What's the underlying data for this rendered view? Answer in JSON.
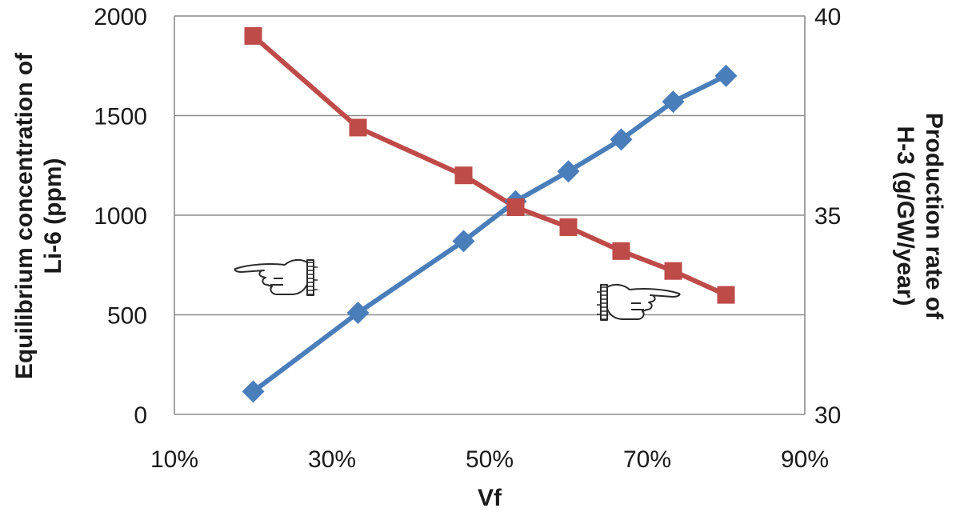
{
  "chart_data": {
    "type": "line",
    "title": "",
    "xlabel": "Vf",
    "ylabel_left": [
      "Equilibrium concentration of",
      "Li-6 (ppm)"
    ],
    "ylabel_right": [
      "Production rate of",
      "H-3 (g/GW/year)"
    ],
    "x_ticks": [
      "10%",
      "30%",
      "50%",
      "70%",
      "90%"
    ],
    "y_left_ticks": [
      "0",
      "500",
      "1000",
      "1500",
      "2000"
    ],
    "y_right_ticks": [
      "30",
      "35",
      "40"
    ],
    "xlim": [
      0.1,
      0.9
    ],
    "ylim_left": [
      0,
      2000
    ],
    "ylim_right": [
      30,
      40
    ],
    "grid": "horizontal",
    "legend": "none",
    "series": [
      {
        "axis": "left",
        "color": "#4a7ebb",
        "marker": "diamond",
        "x": [
          0.2,
          0.333,
          0.467,
          0.533,
          0.6,
          0.667,
          0.733,
          0.8
        ],
        "values": [
          115,
          510,
          870,
          1070,
          1220,
          1380,
          1570,
          1700
        ]
      },
      {
        "axis": "right",
        "color": "#be4b48",
        "marker": "square",
        "x": [
          0.2,
          0.333,
          0.467,
          0.533,
          0.6,
          0.667,
          0.733,
          0.8
        ],
        "values": [
          39.5,
          37.2,
          36.0,
          35.2,
          34.7,
          34.1,
          33.6,
          33.0
        ]
      }
    ],
    "annotations": [
      {
        "icon": "hand-pointing-left-icon",
        "points_to": "left-axis"
      },
      {
        "icon": "hand-pointing-right-icon",
        "points_to": "right-axis"
      }
    ]
  }
}
